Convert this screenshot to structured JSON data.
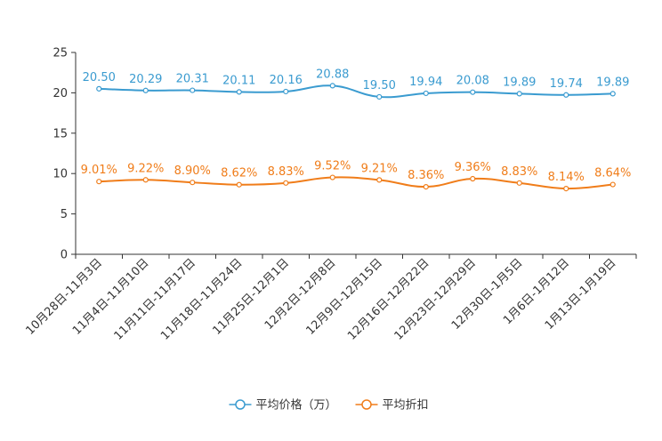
{
  "chart_data": {
    "type": "line",
    "title": "",
    "xlabel": "",
    "ylabel": "",
    "ylim": [
      0,
      25
    ],
    "yticks": [
      0,
      5,
      10,
      15,
      20,
      25
    ],
    "grid": false,
    "legend_position": "bottom-center",
    "categories": [
      "10月28日-11月3日",
      "11月4日-11月10日",
      "11月11日-11月17日",
      "11月18日-11月24日",
      "11月25日-12月1日",
      "12月2日-12月8日",
      "12月9日-12月15日",
      "12月16日-12月22日",
      "12月23日-12月29日",
      "12月30日-1月5日",
      "1月6日-1月12日",
      "1月13日-1月19日"
    ],
    "series": [
      {
        "name": "平均价格（万）",
        "color": "#3a9bd0",
        "values": [
          20.5,
          20.29,
          20.31,
          20.11,
          20.16,
          20.88,
          19.5,
          19.94,
          20.08,
          19.89,
          19.74,
          19.89
        ],
        "labels": [
          "20.50",
          "20.29",
          "20.31",
          "20.11",
          "20.16",
          "20.88",
          "19.50",
          "19.94",
          "20.08",
          "19.89",
          "19.74",
          "19.89"
        ]
      },
      {
        "name": "平均折扣",
        "color": "#f07d1a",
        "values": [
          9.01,
          9.22,
          8.9,
          8.62,
          8.83,
          9.52,
          9.21,
          8.36,
          9.36,
          8.83,
          8.14,
          8.64
        ],
        "labels": [
          "9.01%",
          "9.22%",
          "8.90%",
          "8.62%",
          "8.83%",
          "9.52%",
          "9.21%",
          "8.36%",
          "9.36%",
          "8.83%",
          "8.14%",
          "8.64%"
        ]
      }
    ]
  }
}
